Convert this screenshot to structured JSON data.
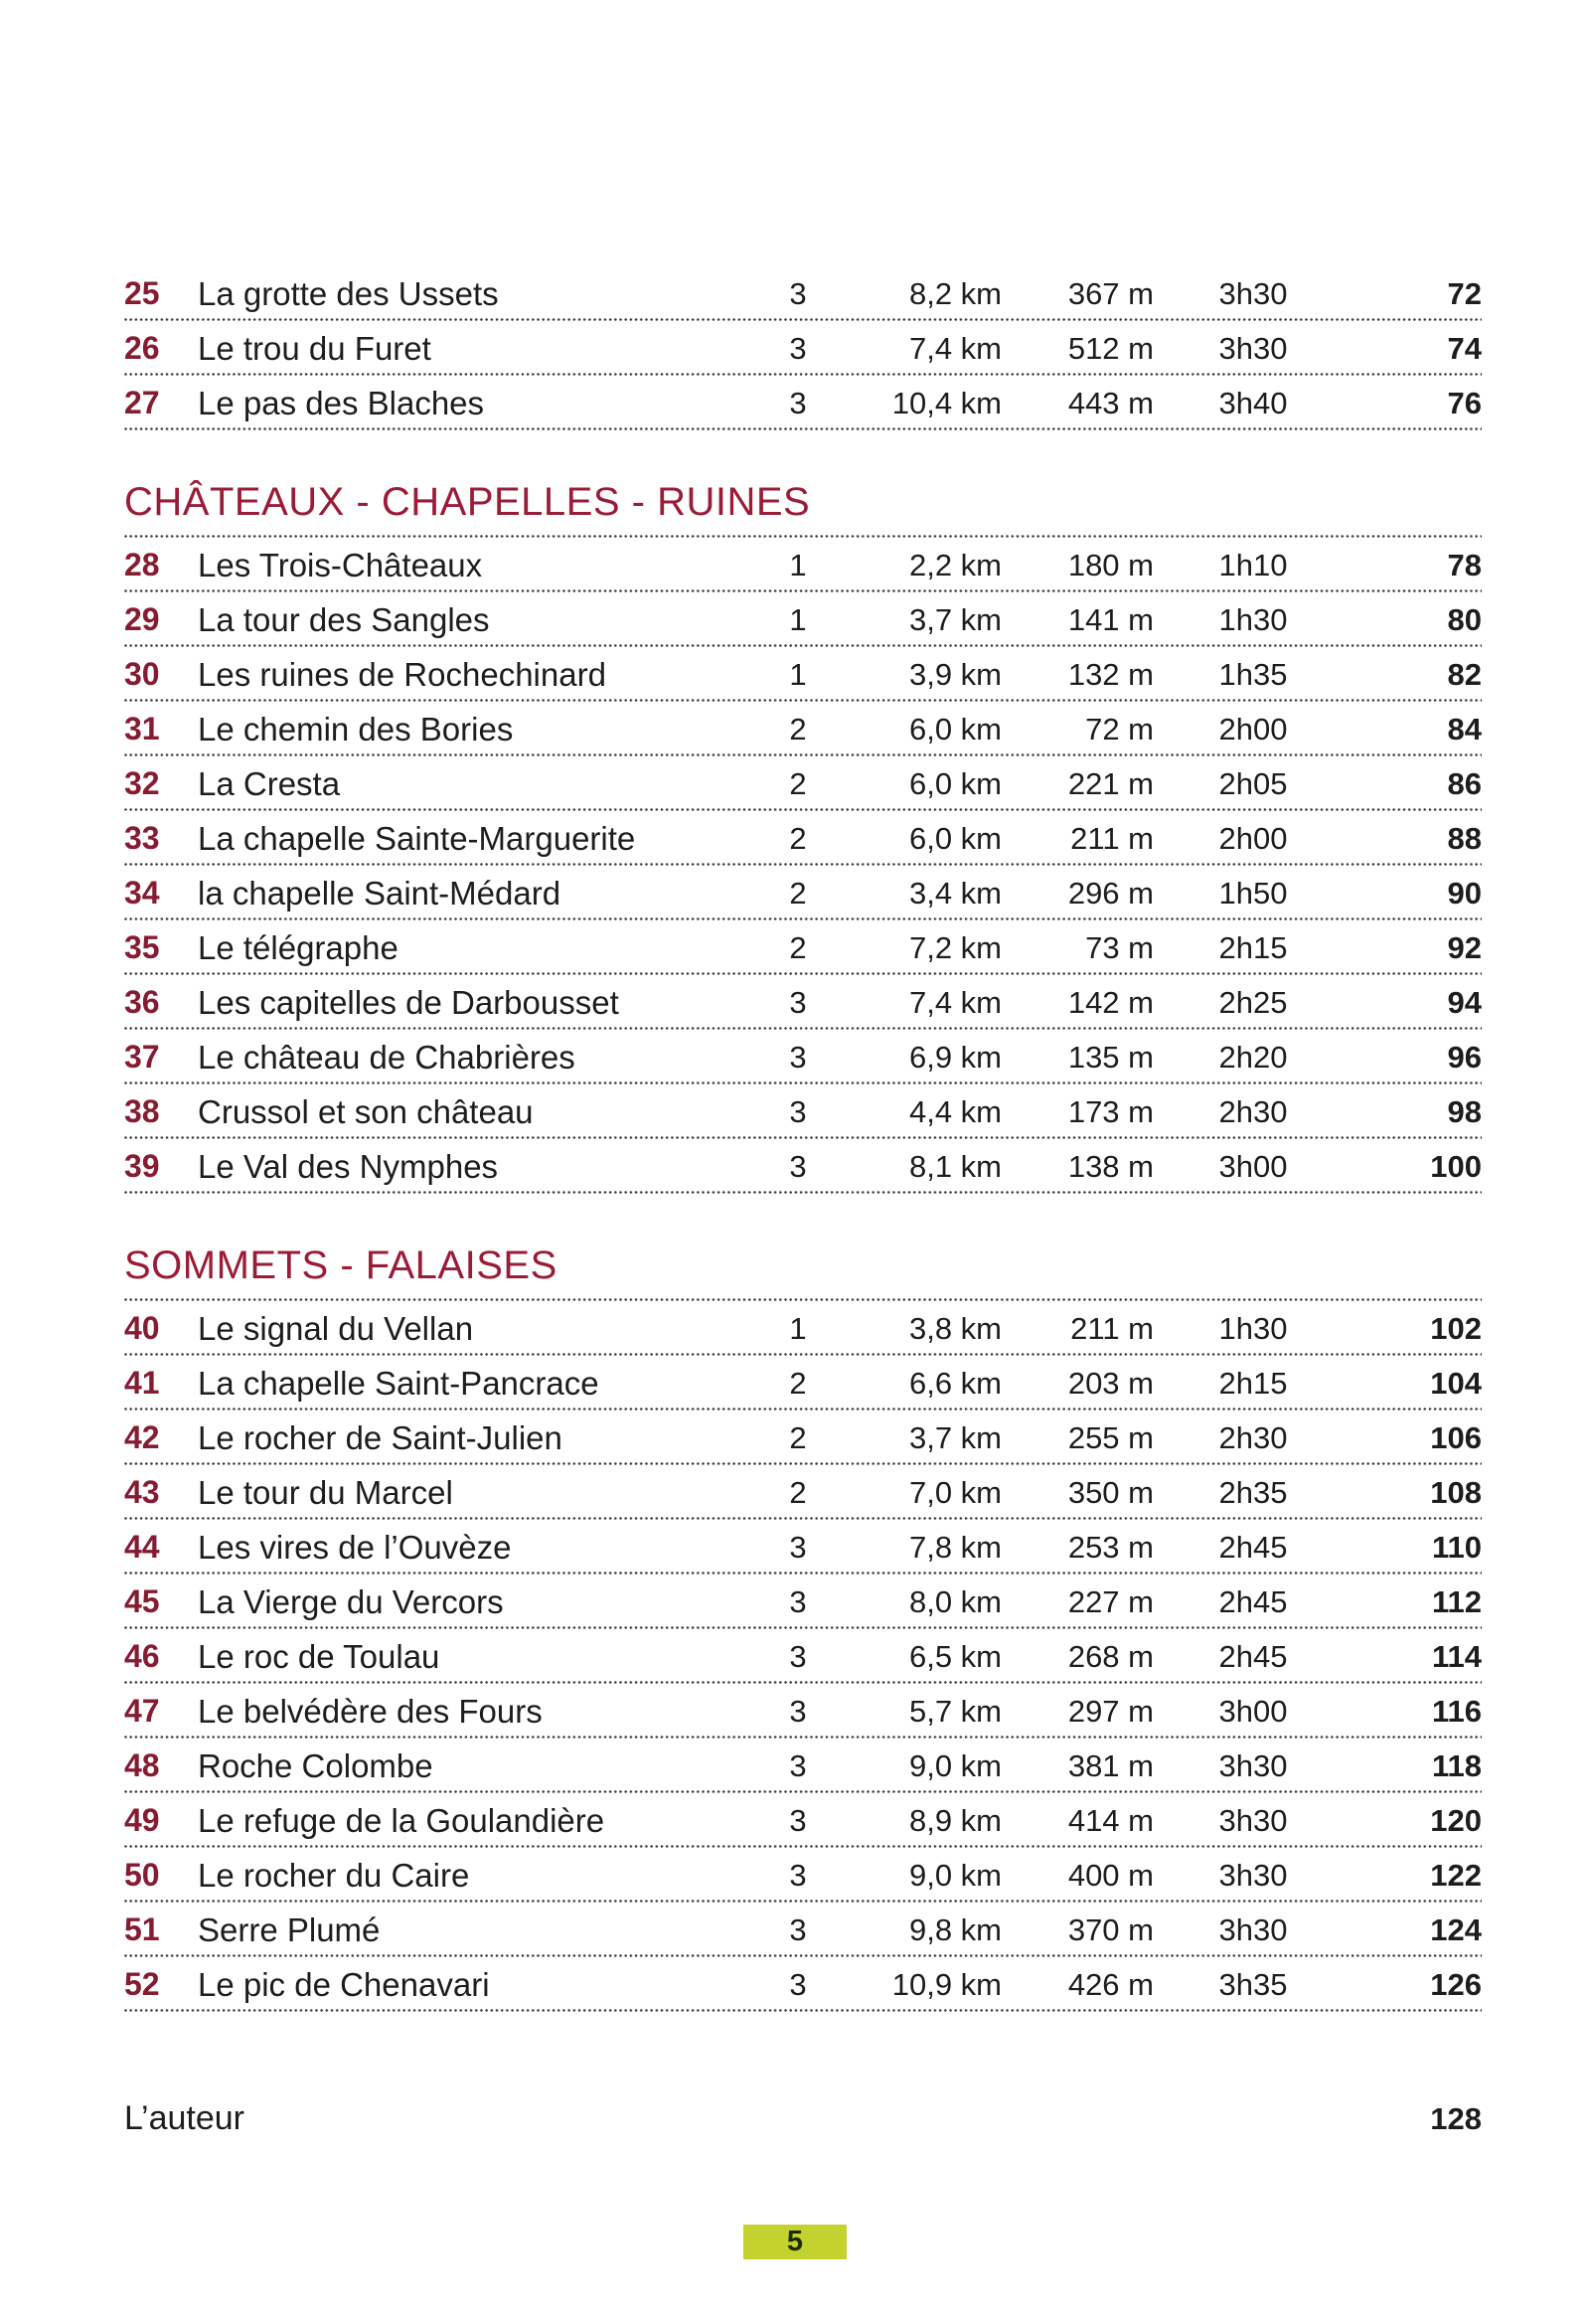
{
  "colors": {
    "header_maroon": "#9b1c37",
    "number_maroon": "#861c31",
    "footer_badge_bg": "#c3d22e",
    "body_text": "#1d1d1b"
  },
  "toc": {
    "sections": [
      {
        "title": null,
        "rows": [
          {
            "num": "25",
            "name": "La grotte des Ussets",
            "difficulty": "3",
            "distance": "8,2 km",
            "elevation": "367 m",
            "duration": "3h30",
            "page": "72"
          },
          {
            "num": "26",
            "name": "Le trou du Furet",
            "difficulty": "3",
            "distance": "7,4 km",
            "elevation": "512 m",
            "duration": "3h30",
            "page": "74"
          },
          {
            "num": "27",
            "name": "Le pas des Blaches",
            "difficulty": "3",
            "distance": "10,4 km",
            "elevation": "443 m",
            "duration": "3h40",
            "page": "76"
          }
        ]
      },
      {
        "title": "CHÂTEAUX - CHAPELLES - RUINES",
        "rows": [
          {
            "num": "28",
            "name": "Les Trois-Châteaux",
            "difficulty": "1",
            "distance": "2,2 km",
            "elevation": "180 m",
            "duration": "1h10",
            "page": "78"
          },
          {
            "num": "29",
            "name": "La tour des Sangles",
            "difficulty": "1",
            "distance": "3,7 km",
            "elevation": "141 m",
            "duration": "1h30",
            "page": "80"
          },
          {
            "num": "30",
            "name": "Les ruines de Rochechinard",
            "difficulty": "1",
            "distance": "3,9 km",
            "elevation": "132 m",
            "duration": "1h35",
            "page": "82"
          },
          {
            "num": "31",
            "name": "Le chemin des Bories",
            "difficulty": "2",
            "distance": "6,0 km",
            "elevation": "72 m",
            "duration": "2h00",
            "page": "84"
          },
          {
            "num": "32",
            "name": "La Cresta",
            "difficulty": "2",
            "distance": "6,0 km",
            "elevation": "221 m",
            "duration": "2h05",
            "page": "86"
          },
          {
            "num": "33",
            "name": "La chapelle Sainte-Marguerite",
            "difficulty": "2",
            "distance": "6,0 km",
            "elevation": "211 m",
            "duration": "2h00",
            "page": "88"
          },
          {
            "num": "34",
            "name": "la chapelle Saint-Médard",
            "difficulty": "2",
            "distance": "3,4 km",
            "elevation": "296 m",
            "duration": "1h50",
            "page": "90"
          },
          {
            "num": "35",
            "name": "Le télégraphe",
            "difficulty": "2",
            "distance": "7,2 km",
            "elevation": "73 m",
            "duration": "2h15",
            "page": "92"
          },
          {
            "num": "36",
            "name": "Les capitelles de Darbousset",
            "difficulty": "3",
            "distance": "7,4 km",
            "elevation": "142 m",
            "duration": "2h25",
            "page": "94"
          },
          {
            "num": "37",
            "name": "Le château de Chabrières",
            "difficulty": "3",
            "distance": "6,9 km",
            "elevation": "135 m",
            "duration": "2h20",
            "page": "96"
          },
          {
            "num": "38",
            "name": "Crussol et son château",
            "difficulty": "3",
            "distance": "4,4 km",
            "elevation": "173 m",
            "duration": "2h30",
            "page": "98"
          },
          {
            "num": "39",
            "name": "Le Val des Nymphes",
            "difficulty": "3",
            "distance": "8,1 km",
            "elevation": "138 m",
            "duration": "3h00",
            "page": "100"
          }
        ]
      },
      {
        "title": "SOMMETS - FALAISES",
        "rows": [
          {
            "num": "40",
            "name": "Le signal du Vellan",
            "difficulty": "1",
            "distance": "3,8 km",
            "elevation": "211 m",
            "duration": "1h30",
            "page": "102"
          },
          {
            "num": "41",
            "name": "La chapelle Saint-Pancrace",
            "difficulty": "2",
            "distance": "6,6 km",
            "elevation": "203 m",
            "duration": "2h15",
            "page": "104"
          },
          {
            "num": "42",
            "name": "Le rocher de Saint-Julien",
            "difficulty": "2",
            "distance": "3,7 km",
            "elevation": "255 m",
            "duration": "2h30",
            "page": "106"
          },
          {
            "num": "43",
            "name": "Le tour du Marcel",
            "difficulty": "2",
            "distance": "7,0 km",
            "elevation": "350 m",
            "duration": "2h35",
            "page": "108"
          },
          {
            "num": "44",
            "name": "Les vires de l’Ouvèze",
            "difficulty": "3",
            "distance": "7,8 km",
            "elevation": "253 m",
            "duration": "2h45",
            "page": "110"
          },
          {
            "num": "45",
            "name": "La Vierge du Vercors",
            "difficulty": "3",
            "distance": "8,0 km",
            "elevation": "227 m",
            "duration": "2h45",
            "page": "112"
          },
          {
            "num": "46",
            "name": "Le roc de Toulau",
            "difficulty": "3",
            "distance": "6,5 km",
            "elevation": "268 m",
            "duration": "2h45",
            "page": "114"
          },
          {
            "num": "47",
            "name": "Le belvédère des Fours",
            "difficulty": "3",
            "distance": "5,7 km",
            "elevation": "297 m",
            "duration": "3h00",
            "page": "116"
          },
          {
            "num": "48",
            "name": "Roche Colombe",
            "difficulty": "3",
            "distance": "9,0 km",
            "elevation": "381 m",
            "duration": "3h30",
            "page": "118"
          },
          {
            "num": "49",
            "name": "Le refuge de la Goulandière",
            "difficulty": "3",
            "distance": "8,9 km",
            "elevation": "414 m",
            "duration": "3h30",
            "page": "120"
          },
          {
            "num": "50",
            "name": "Le rocher du Caire",
            "difficulty": "3",
            "distance": "9,0 km",
            "elevation": "400 m",
            "duration": "3h30",
            "page": "122"
          },
          {
            "num": "51",
            "name": "Serre Plumé",
            "difficulty": "3",
            "distance": "9,8 km",
            "elevation": "370 m",
            "duration": "3h30",
            "page": "124"
          },
          {
            "num": "52",
            "name": "Le pic de Chenavari",
            "difficulty": "3",
            "distance": "10,9 km",
            "elevation": "426 m",
            "duration": "3h35",
            "page": "126"
          }
        ]
      }
    ],
    "author_row": {
      "label": "L’auteur",
      "page": "128"
    }
  },
  "footer": {
    "page_number": "5"
  }
}
